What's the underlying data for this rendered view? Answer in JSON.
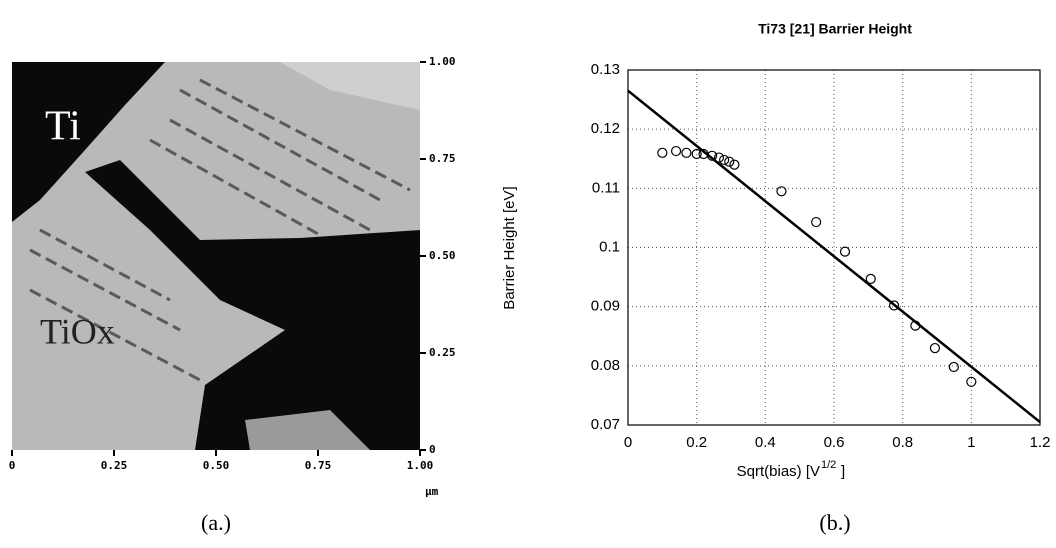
{
  "chart_data": [
    {
      "type": "image",
      "annotations": [
        "Ti",
        "TiOx"
      ],
      "xlim": [
        0,
        1
      ],
      "ylim": [
        0,
        1
      ],
      "xticks": [
        0,
        0.25,
        {
          "value": 0.5,
          "label": "0.50"
        },
        0.75,
        {
          "value": 1,
          "label": "1.00"
        }
      ],
      "yticks": [
        0,
        0.25,
        {
          "value": 0.5,
          "label": "0.50"
        },
        0.75,
        {
          "value": 1,
          "label": "1.00"
        }
      ],
      "unit": "μm",
      "caption": "(a.)"
    },
    {
      "type": "scatter",
      "title": "Ti73 [21] Barrier Height",
      "y_label": "Barrier Height [eV]",
      "x_label": "Sqrt(bias)  [V",
      "x_label_superscript": "1/2",
      "x_label_end": "]",
      "x": [
        0.1,
        0.14,
        0.17,
        0.2,
        0.22,
        0.245,
        0.265,
        0.28,
        0.295,
        0.31,
        0.447,
        0.548,
        0.632,
        0.707,
        0.775,
        0.837,
        0.894,
        0.949,
        1.0
      ],
      "values": [
        0.116,
        0.1163,
        0.116,
        0.1158,
        0.1158,
        0.1155,
        0.1152,
        0.1148,
        0.1145,
        0.114,
        0.1095,
        0.1043,
        0.0993,
        0.0947,
        0.0902,
        0.0868,
        0.083,
        0.0798,
        0.0773
      ],
      "fit_x": [
        0,
        1.2
      ],
      "fit_values": [
        0.1265,
        0.0705
      ],
      "xlim": [
        0,
        1.2
      ],
      "ylim": [
        0.07,
        0.13
      ],
      "xticks": [
        0,
        0.2,
        0.4,
        0.6,
        0.8,
        1,
        1.2
      ],
      "yticks": [
        0.07,
        0.08,
        0.09,
        0.1,
        0.11,
        0.12,
        0.13
      ],
      "grid": true,
      "caption": "(b.)"
    }
  ]
}
